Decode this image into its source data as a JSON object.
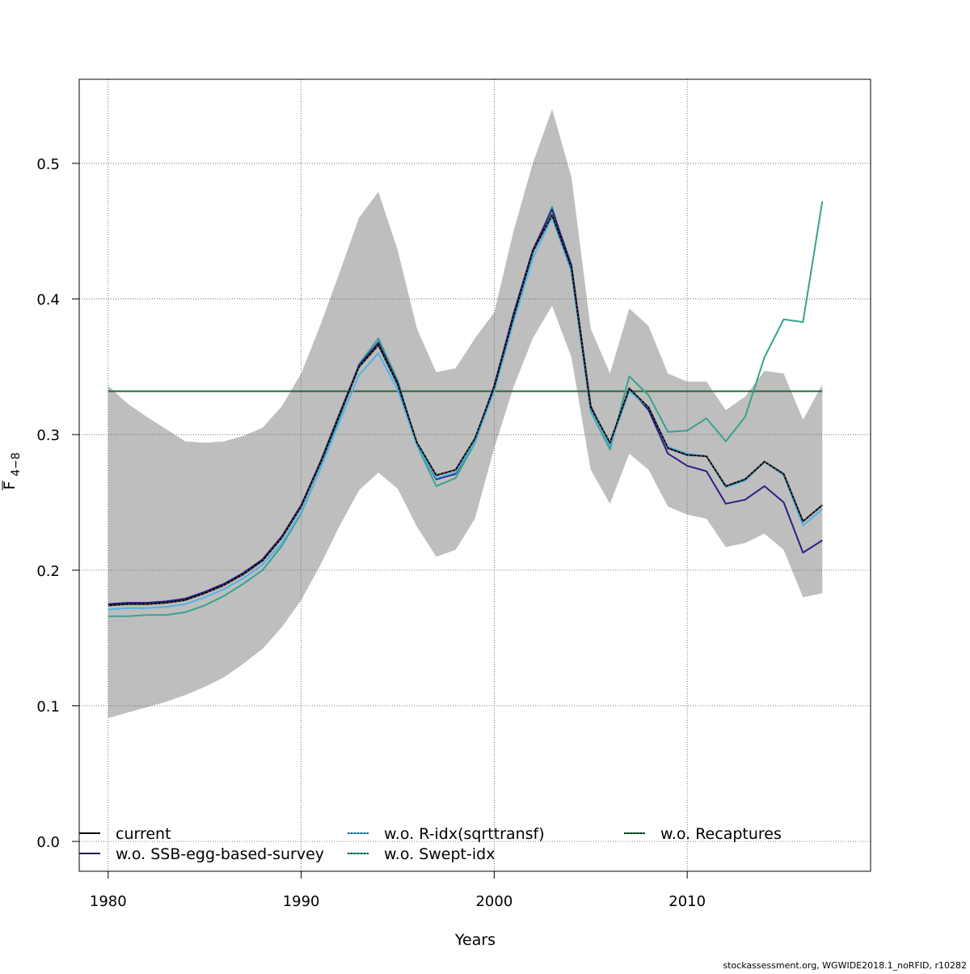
{
  "chart_data": {
    "type": "line",
    "xlabel": "Years",
    "ylabel": "F",
    "ylabel_sub": "4−8",
    "xlim": [
      1978.5,
      2019.5
    ],
    "ylim": [
      -0.022,
      0.562
    ],
    "xticks": [
      1980,
      1990,
      2000,
      2010
    ],
    "xtick_labels": [
      "1980",
      "1990",
      "2000",
      "2010"
    ],
    "yticks": [
      0.0,
      0.1,
      0.2,
      0.3,
      0.4,
      0.5
    ],
    "ytick_labels": [
      "0.0",
      "0.1",
      "0.2",
      "0.3",
      "0.4",
      "0.5"
    ],
    "grid": true,
    "legend_position": "bottom",
    "x": [
      1980,
      1981,
      1982,
      1983,
      1984,
      1985,
      1986,
      1987,
      1988,
      1989,
      1990,
      1991,
      1992,
      1993,
      1994,
      1995,
      1996,
      1997,
      1998,
      1999,
      2000,
      2001,
      2002,
      2003,
      2004,
      2005,
      2006,
      2007,
      2008,
      2009,
      2010,
      2011,
      2012,
      2013,
      2014,
      2015,
      2016,
      2017
    ],
    "confidence_band": {
      "color": "#bebebe",
      "upper": [
        0.336,
        0.323,
        0.313,
        0.304,
        0.295,
        0.294,
        0.295,
        0.299,
        0.305,
        0.321,
        0.345,
        0.381,
        0.42,
        0.46,
        0.479,
        0.436,
        0.378,
        0.346,
        0.349,
        0.371,
        0.39,
        0.45,
        0.5,
        0.54,
        0.49,
        0.378,
        0.345,
        0.393,
        0.38,
        0.345,
        0.339,
        0.339,
        0.318,
        0.328,
        0.347,
        0.345,
        0.311,
        0.337
      ],
      "lower": [
        0.091,
        0.095,
        0.099,
        0.103,
        0.108,
        0.114,
        0.121,
        0.131,
        0.142,
        0.158,
        0.178,
        0.204,
        0.233,
        0.259,
        0.272,
        0.26,
        0.232,
        0.21,
        0.215,
        0.238,
        0.29,
        0.335,
        0.371,
        0.395,
        0.357,
        0.274,
        0.249,
        0.286,
        0.274,
        0.247,
        0.241,
        0.238,
        0.217,
        0.22,
        0.227,
        0.215,
        0.18,
        0.183
      ]
    },
    "series": [
      {
        "name": "current",
        "color": "#000000",
        "dash": "",
        "values": [
          0.174,
          0.175,
          0.175,
          0.176,
          0.178,
          0.183,
          0.189,
          0.197,
          0.207,
          0.224,
          0.247,
          0.279,
          0.315,
          0.35,
          0.366,
          0.337,
          0.294,
          0.27,
          0.274,
          0.297,
          0.335,
          0.387,
          0.435,
          0.462,
          0.423,
          0.32,
          0.294,
          0.334,
          0.32,
          0.29,
          0.285,
          0.284,
          0.262,
          0.267,
          0.28,
          0.271,
          0.236,
          0.248
        ]
      },
      {
        "name": "w.o. SSB-egg-based-survey",
        "color": "#2d1e87",
        "dash": "",
        "values": [
          0.175,
          0.176,
          0.176,
          0.177,
          0.179,
          0.184,
          0.19,
          0.198,
          0.208,
          0.225,
          0.248,
          0.28,
          0.316,
          0.351,
          0.368,
          0.338,
          0.293,
          0.267,
          0.271,
          0.296,
          0.336,
          0.389,
          0.436,
          0.466,
          0.425,
          0.321,
          0.292,
          0.334,
          0.318,
          0.286,
          0.277,
          0.273,
          0.249,
          0.252,
          0.262,
          0.25,
          0.213,
          0.222
        ]
      },
      {
        "name": "w.o. R-idx(sqrttransf)",
        "color": "#4fb4ea",
        "dash": "",
        "values": [
          0.171,
          0.172,
          0.172,
          0.173,
          0.175,
          0.18,
          0.186,
          0.194,
          0.204,
          0.22,
          0.243,
          0.275,
          0.31,
          0.344,
          0.36,
          0.333,
          0.292,
          0.268,
          0.272,
          0.295,
          0.332,
          0.383,
          0.43,
          0.46,
          0.42,
          0.318,
          0.292,
          0.332,
          0.32,
          0.291,
          0.286,
          0.284,
          0.261,
          0.266,
          0.28,
          0.27,
          0.233,
          0.245
        ]
      },
      {
        "name": "w.o. Swept-idx",
        "color": "#36a28f",
        "dash": "",
        "values": [
          0.166,
          0.166,
          0.167,
          0.167,
          0.169,
          0.174,
          0.181,
          0.19,
          0.2,
          0.218,
          0.242,
          0.275,
          0.313,
          0.352,
          0.371,
          0.34,
          0.292,
          0.262,
          0.268,
          0.294,
          0.334,
          0.387,
          0.434,
          0.468,
          0.42,
          0.317,
          0.289,
          0.343,
          0.329,
          0.302,
          0.303,
          0.312,
          0.295,
          0.313,
          0.357,
          0.385,
          0.383,
          0.472
        ]
      },
      {
        "name": "w.o. Recaptures",
        "color": "#1a6f36",
        "dash": "",
        "values": [
          0.332,
          0.332,
          0.332,
          0.332,
          0.332,
          0.332,
          0.332,
          0.332,
          0.332,
          0.332,
          0.332,
          0.332,
          0.332,
          0.332,
          0.332,
          0.332,
          0.332,
          0.332,
          0.332,
          0.332,
          0.332,
          0.332,
          0.332,
          0.332,
          0.332,
          0.332,
          0.332,
          0.332,
          0.332,
          0.332,
          0.332,
          0.332,
          0.332,
          0.332,
          0.332,
          0.332,
          0.332,
          0.332
        ]
      }
    ]
  },
  "legend": {
    "items": [
      {
        "label": "current",
        "color": "#000000",
        "dotted": false
      },
      {
        "label": "w.o. SSB-egg-based-survey",
        "color": "#2d1e87",
        "dotted": true
      },
      {
        "label": "w.o. R-idx(sqrttransf)",
        "color": "#4fb4ea",
        "dotted": true
      },
      {
        "label": "w.o. Swept-idx",
        "color": "#36a28f",
        "dotted": true
      },
      {
        "label": "w.o. Recaptures",
        "color": "#1a6f36",
        "dotted": true
      }
    ]
  },
  "footer": {
    "text": "stockassessment.org, WGWIDE2018.1_noRFID, r10282"
  }
}
